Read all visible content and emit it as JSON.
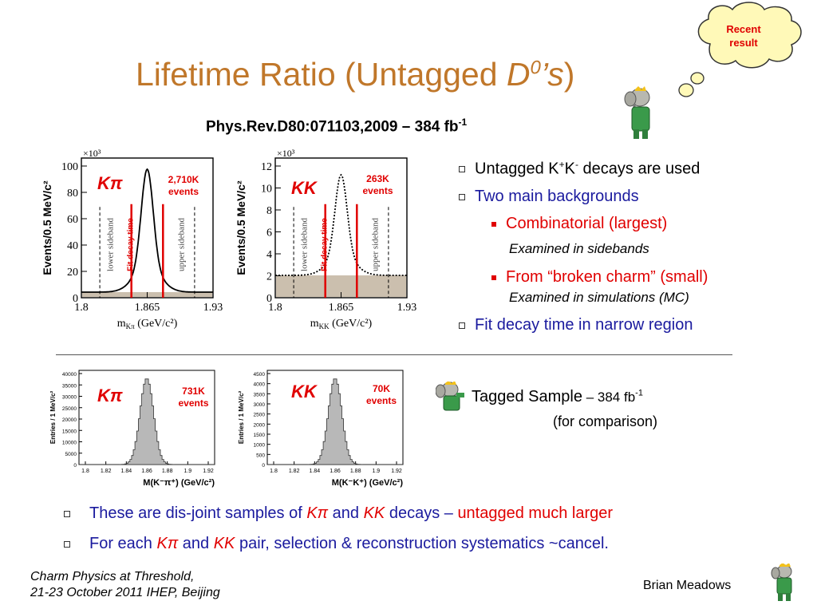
{
  "cloud": {
    "line1": "Recent",
    "line2": "result"
  },
  "title": {
    "pre": "Lifetime Ratio (Untagged ",
    "d": "D",
    "sup": "0",
    "post": "’s",
    "close": ")"
  },
  "reference": {
    "text": "Phys.Rev.D80:071103,2009  – 384 fb",
    "sup": "-1"
  },
  "plots_top": [
    {
      "label": "Kπ",
      "events_count": "2,710K",
      "events_word": "events",
      "ylabel": "Events/0.5 MeV/c²",
      "exp": "×10³",
      "yticks": [
        "100",
        "80",
        "60",
        "40",
        "20",
        "0"
      ],
      "xticks": [
        "1.8",
        "1.865",
        "1.93"
      ],
      "xlabel": "m",
      "xlabel_sub": "Kπ",
      "xlabel_unit": "(GeV/c²)",
      "sideband_left": "lower sideband",
      "sideband_right": "upper sideband",
      "fit_label": "Fit decay time"
    },
    {
      "label": "KK",
      "events_count": "263K",
      "events_word": "events",
      "ylabel": "Events/0.5 MeV/c²",
      "exp": "×10³",
      "yticks": [
        "12",
        "10",
        "8",
        "6",
        "4",
        "2",
        "0"
      ],
      "xticks": [
        "1.8",
        "1.865",
        "1.93"
      ],
      "xlabel": "m",
      "xlabel_sub": "KK",
      "xlabel_unit": "(GeV/c²)",
      "sideband_left": "lower sideband",
      "sideband_right": "upper sideband",
      "fit_label": "Fit decay time"
    }
  ],
  "plots_bottom": [
    {
      "label": "Kπ",
      "events_count": "731K",
      "events_word": "events",
      "ylabel": "Entries / 1 MeV/c²",
      "yticks": [
        "40000",
        "35000",
        "30000",
        "25000",
        "20000",
        "15000",
        "10000",
        "5000",
        "0"
      ],
      "xticks": [
        "1.8",
        "1.82",
        "1.84",
        "1.86",
        "1.88",
        "1.9",
        "1.92"
      ],
      "xlabel": "M(K⁻π⁺) (GeV/c²)"
    },
    {
      "label": "KK",
      "events_count": "70K",
      "events_word": "events",
      "ylabel": "Entries / 1 MeV/c²",
      "yticks": [
        "4500",
        "4000",
        "3500",
        "3000",
        "2500",
        "2000",
        "1500",
        "1000",
        "500",
        "0"
      ],
      "xticks": [
        "1.8",
        "1.82",
        "1.84",
        "1.86",
        "1.88",
        "1.9",
        "1.92"
      ],
      "xlabel": "M(K⁻K⁺) (GeV/c²)"
    }
  ],
  "right_bullets": {
    "b1_pre": "Untagged K",
    "b1_sup1": "+",
    "b1_mid": "K",
    "b1_sup2": "-",
    "b1_post": " decays are used",
    "b2": "Two main backgrounds",
    "s1": "Combinatorial  (largest)",
    "s1_note": "Examined in sidebands",
    "s2": "From “broken charm” (small)",
    "s2_note": "Examined in simulations (MC)",
    "b3": "Fit decay time in narrow region"
  },
  "tagged": {
    "label": "Tagged Sample",
    "lum": " – 384 fb",
    "sup": "-1",
    "note": "(for comparison)"
  },
  "bottom_bullets": {
    "l1_a": "These are dis-joint samples of ",
    "l1_kpi": "Kπ",
    "l1_and": " and ",
    "l1_kk": "KK",
    "l1_b": " decays – ",
    "l1_red": "untagged much larger",
    "l2_a": "For each ",
    "l2_kpi": "Kπ",
    "l2_and": " and ",
    "l2_kk": "KK",
    "l2_b": " pair, selection & reconstruction systematics ~cancel."
  },
  "footer": {
    "line1": "Charm Physics at Threshold,",
    "line2": "21-23 October 2011 IHEP, Beijing",
    "author": "Brian Meadows"
  },
  "colors": {
    "title": "#c0772a",
    "red": "#e00000",
    "blue": "#1a1a9e",
    "cloud": "#fff9b8"
  }
}
